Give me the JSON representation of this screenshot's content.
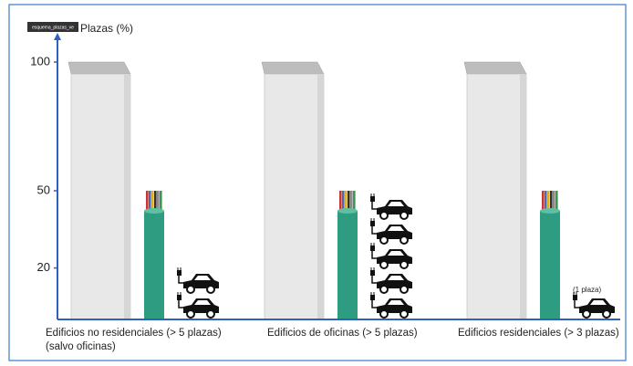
{
  "chart_data": {
    "type": "bar",
    "tag": "esquema_plazas_ve",
    "y_label": "Plazas (%)",
    "categories": [
      "Edificios no residenciales  (> 5 plazas)\n(salvo oficinas)",
      "Edificios de oficinas (> 5 plazas)",
      "Edificios residenciales (> 3 plazas)"
    ],
    "series": [
      {
        "color": "#e8e8e8",
        "values": [
          100,
          100,
          100
        ]
      },
      {
        "color": "#2e9c80",
        "values": [
          50,
          50,
          50
        ]
      },
      {
        "color": "#111111",
        "values": [
          20,
          50,
          8
        ]
      }
    ],
    "annotation": "(1 plaza)",
    "ylim": [
      0,
      100
    ],
    "yticks": [
      20,
      50,
      100
    ],
    "axis_color": "#2f5fc0"
  }
}
